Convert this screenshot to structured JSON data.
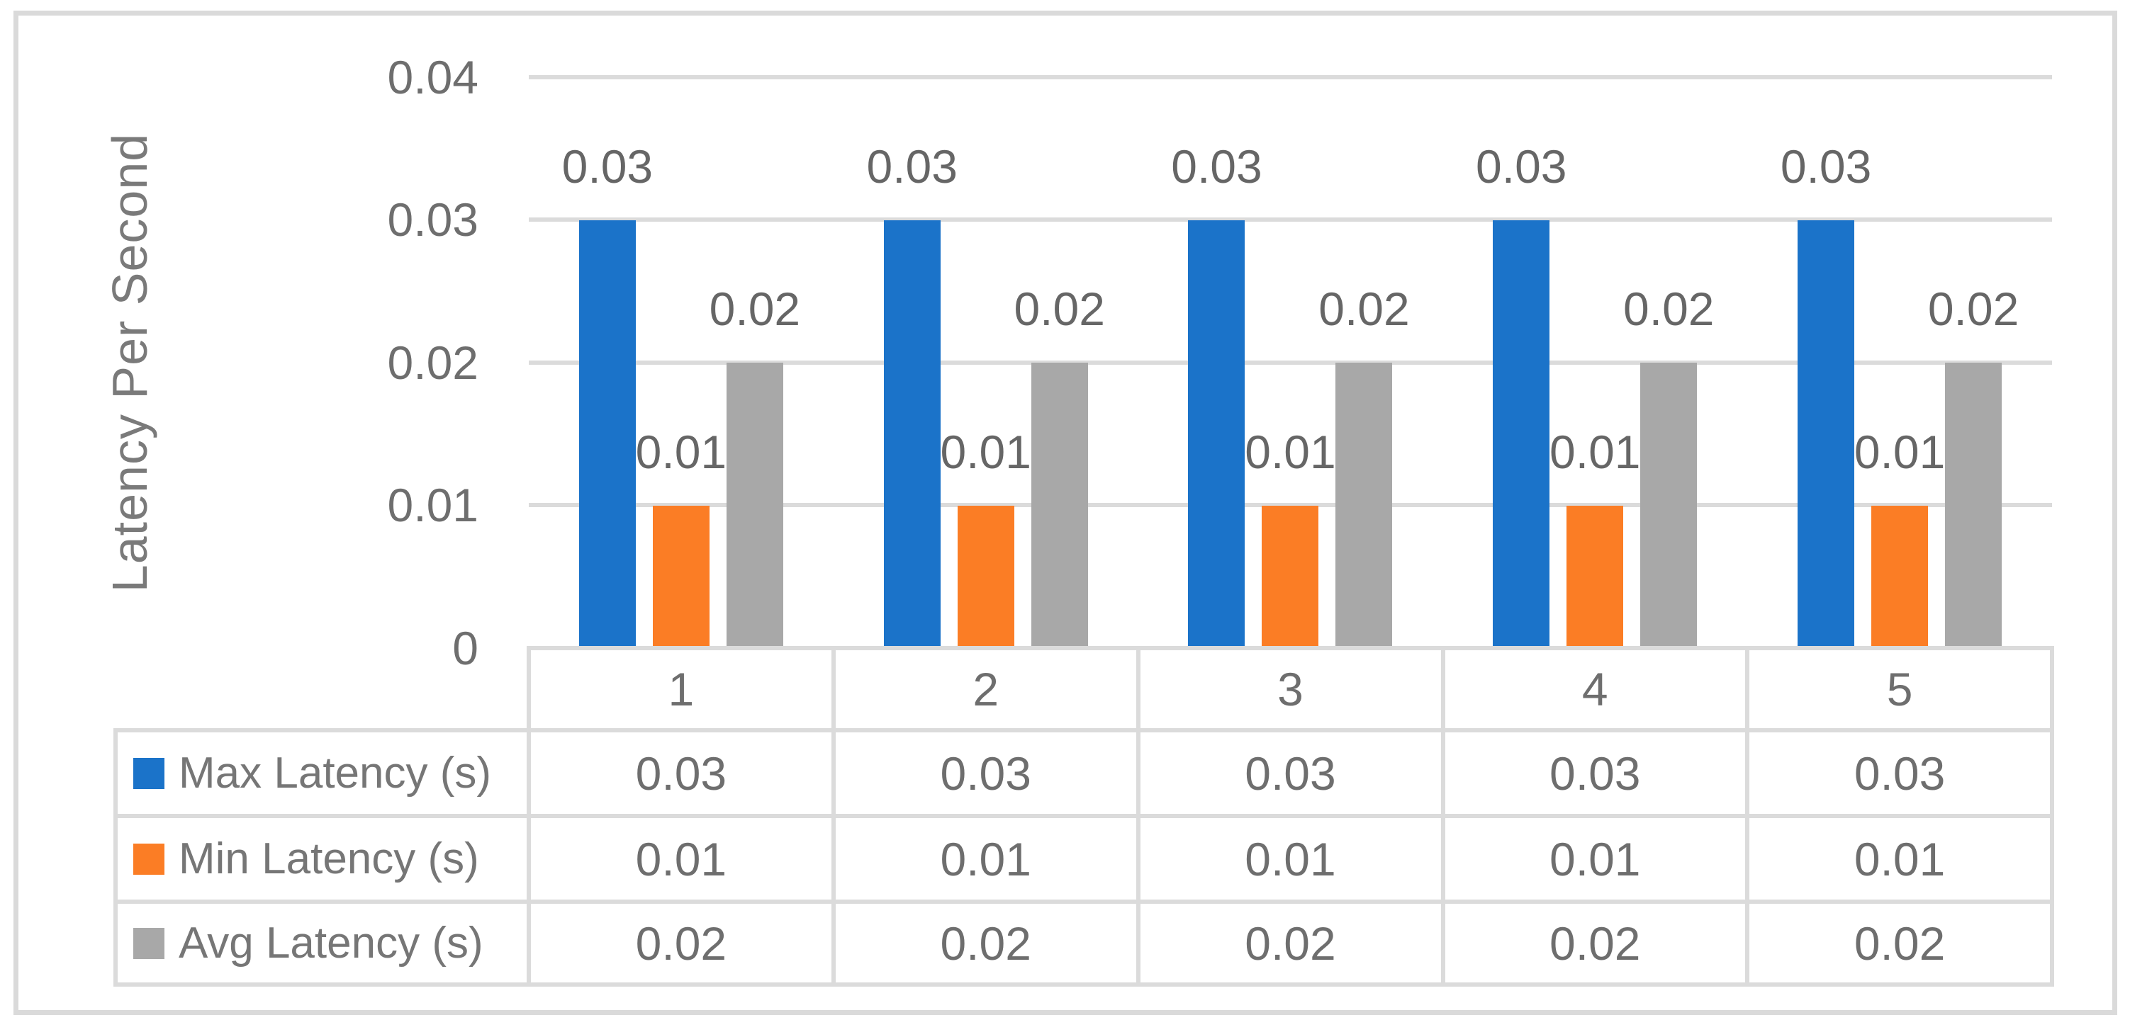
{
  "figure": {
    "background_color": "#ffffff",
    "border_color": "#dadada",
    "gridline_color": "#dbdbdb",
    "text_color": "#6e6e6e"
  },
  "chart_data": {
    "type": "bar",
    "title": "",
    "xlabel": "",
    "ylabel": "Latency Per Second",
    "ylim": [
      0,
      0.04
    ],
    "yticks": [
      "0.04",
      "0.03",
      "0.02",
      "0.01",
      "0"
    ],
    "grid": "horizontal",
    "legend_position": "left-of-data-table",
    "categories": [
      "1",
      "2",
      "3",
      "4",
      "5"
    ],
    "series": [
      {
        "name": "Max Latency (s)",
        "color": "#1b73c9",
        "values": [
          0.03,
          0.03,
          0.03,
          0.03,
          0.03
        ],
        "labels": [
          "0.03",
          "0.03",
          "0.03",
          "0.03",
          "0.03"
        ]
      },
      {
        "name": "Min Latency (s)",
        "color": "#fb7d25",
        "values": [
          0.01,
          0.01,
          0.01,
          0.01,
          0.01
        ],
        "labels": [
          "0.01",
          "0.01",
          "0.01",
          "0.01",
          "0.01"
        ]
      },
      {
        "name": "Avg Latency (s)",
        "color": "#a8a8a8",
        "values": [
          0.02,
          0.02,
          0.02,
          0.02,
          0.02
        ],
        "labels": [
          "0.02",
          "0.02",
          "0.02",
          "0.02",
          "0.02"
        ]
      }
    ]
  }
}
